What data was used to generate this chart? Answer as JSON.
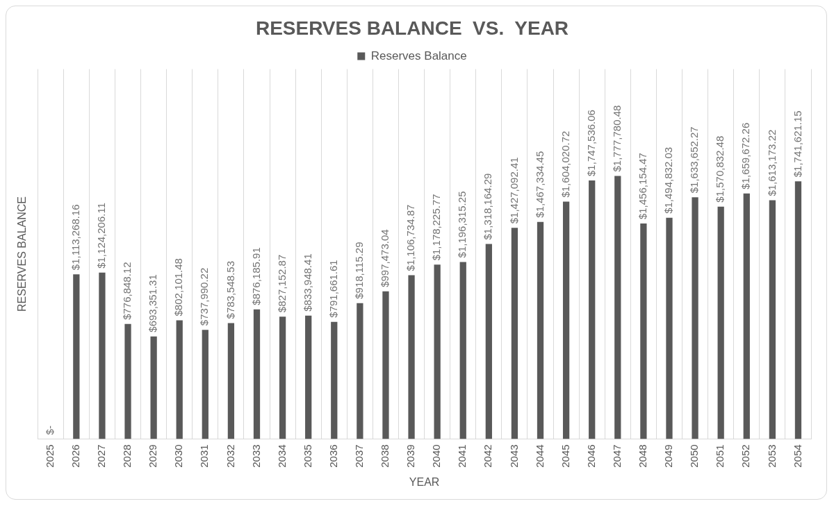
{
  "chart_data": {
    "type": "bar",
    "title": "RESERVES BALANCE  VS.  YEAR",
    "xlabel": "YEAR",
    "ylabel": "RESERVES BALANCE",
    "categories": [
      "2025",
      "2026",
      "2027",
      "2028",
      "2029",
      "2030",
      "2031",
      "2032",
      "2033",
      "2034",
      "2035",
      "2036",
      "2037",
      "2038",
      "2039",
      "2040",
      "2041",
      "2042",
      "2043",
      "2044",
      "2045",
      "2046",
      "2047",
      "2048",
      "2049",
      "2050",
      "2051",
      "2052",
      "2053",
      "2054"
    ],
    "series": [
      {
        "name": "Reserves Balance",
        "color": "#595959",
        "values": [
          0,
          1113268.16,
          1124206.11,
          776848.12,
          693351.31,
          802101.48,
          737990.22,
          783548.53,
          876185.91,
          827152.87,
          833948.41,
          791661.61,
          918115.29,
          997473.04,
          1106734.87,
          1178225.77,
          1196315.25,
          1318164.29,
          1427092.41,
          1467334.45,
          1604020.72,
          1747536.06,
          1777780.48,
          1456154.47,
          1494832.03,
          1633652.27,
          1570832.48,
          1659672.26,
          1613173.22,
          1741621.15
        ],
        "value_labels": [
          "$-",
          "$1,113,268.16",
          "$1,124,206.11",
          "$776,848.12",
          "$693,351.31",
          "$802,101.48",
          "$737,990.22",
          "$783,548.53",
          "$876,185.91",
          "$827,152.87",
          "$833,948.41",
          "$791,661.61",
          "$918,115.29",
          "$997,473.04",
          "$1,106,734.87",
          "$1,178,225.77",
          "$1,196,315.25",
          "$1,318,164.29",
          "$1,427,092.41",
          "$1,467,334.45",
          "$1,604,020.72",
          "$1,747,536.06",
          "$1,777,780.48",
          "$1,456,154.47",
          "$1,494,832.03",
          "$1,633,652.27",
          "$1,570,832.48",
          "$1,659,672.26",
          "$1,613,173.22",
          "$1,741,621.15"
        ]
      }
    ],
    "grid": "x",
    "legend": "top"
  }
}
